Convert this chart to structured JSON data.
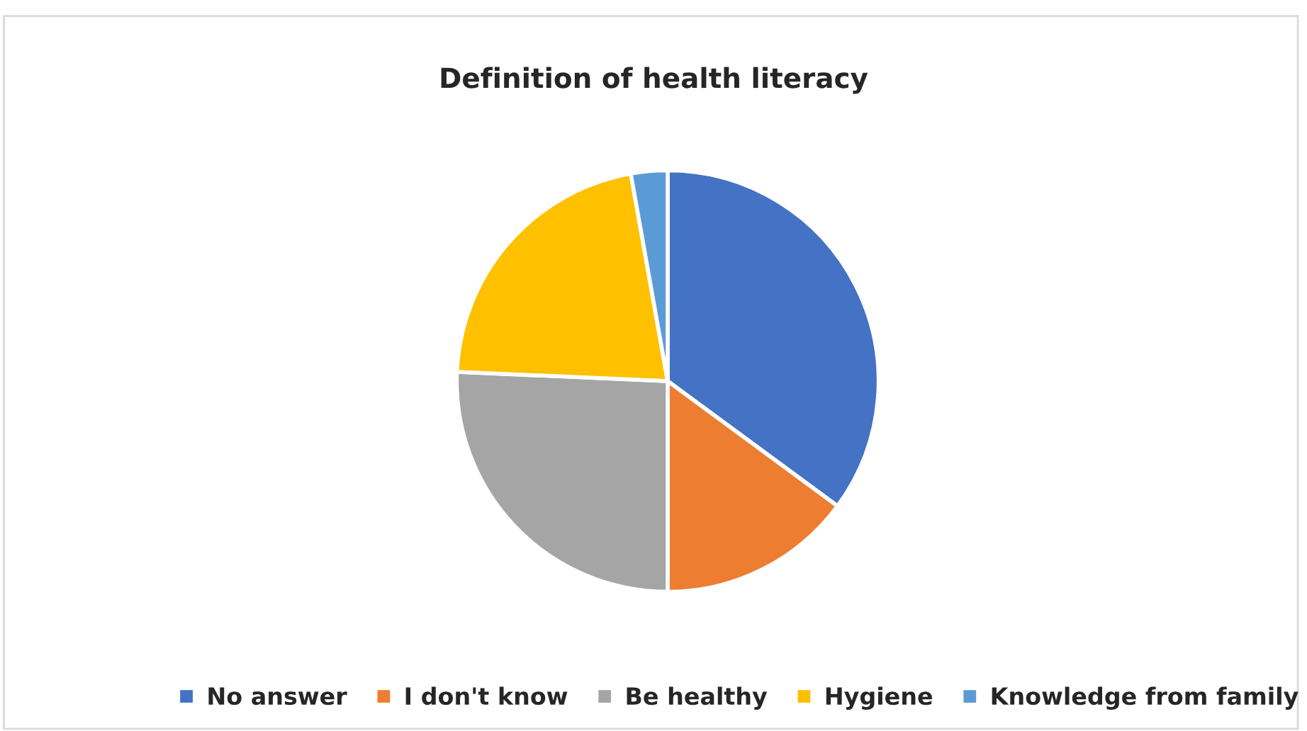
{
  "chart_data": {
    "type": "pie",
    "title": "Definition of health literacy",
    "categories": [
      "No answer",
      "I don't know",
      "Be healthy",
      "Hygiene",
      "Knowledge from family"
    ],
    "values": [
      35.1,
      14.9,
      25.7,
      21.5,
      2.8
    ],
    "colors": [
      "#4472c4",
      "#ed7d31",
      "#a5a5a5",
      "#ffc000",
      "#5b9bd5"
    ],
    "legend": "bottom"
  }
}
